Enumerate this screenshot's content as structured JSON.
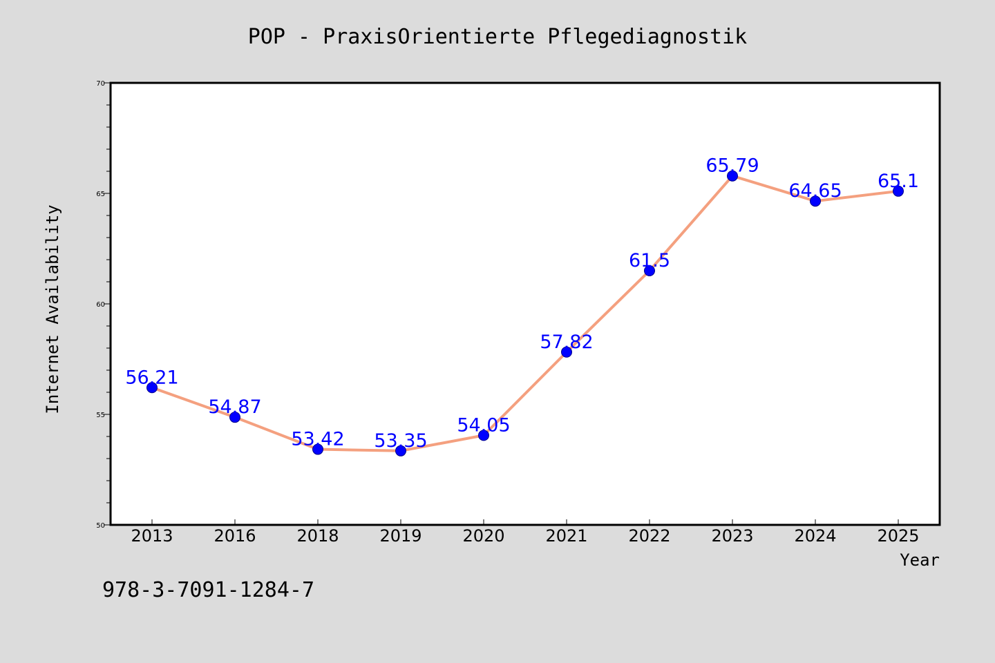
{
  "chart_data": {
    "type": "line",
    "title": "POP - PraxisOrientierte Pflegediagnostik",
    "xlabel": "Year",
    "ylabel": "Internet Availability",
    "categories": [
      "2013",
      "2016",
      "2018",
      "2019",
      "2020",
      "2021",
      "2022",
      "2023",
      "2024",
      "2025"
    ],
    "series": [
      {
        "values": [
          56.21,
          54.87,
          53.42,
          53.35,
          54.05,
          57.82,
          61.5,
          65.79,
          64.65,
          65.1
        ],
        "labels": [
          "56.21",
          "54.87",
          "53.42",
          "53.35",
          "54.05",
          "57.82",
          "61.5",
          "65.79",
          "64.65",
          "65.1"
        ],
        "line_color": "#f4a07f",
        "marker_color": "#0000ff"
      }
    ],
    "ylim": [
      50,
      70
    ],
    "y_ticks": [
      "50",
      "55",
      "60",
      "65",
      "70"
    ],
    "y_minor_step": 1,
    "grid": false,
    "legend": "none",
    "annotation": "978-3-7091-1284-7",
    "label_color": "#0000ff",
    "background_color": "#dcdcdc",
    "plot_background_color": "#ffffff"
  }
}
